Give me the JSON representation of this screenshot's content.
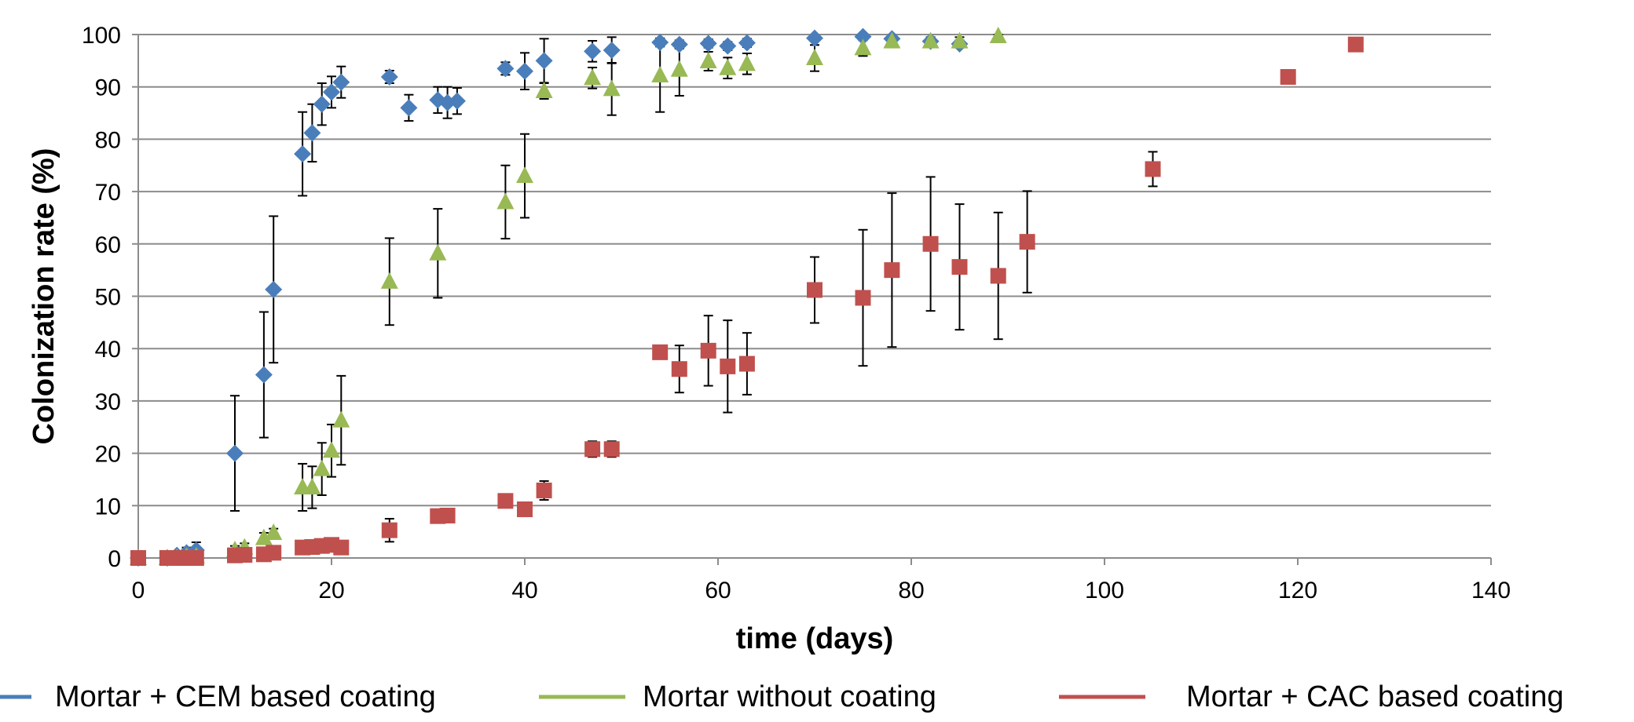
{
  "chart_data": {
    "type": "scatter",
    "xlabel": "time (days)",
    "ylabel": "Colonization rate (%)",
    "xlim": [
      0,
      140
    ],
    "ylim": [
      0,
      100
    ],
    "xticks": [
      0,
      20,
      40,
      60,
      80,
      100,
      120,
      140
    ],
    "yticks": [
      0,
      10,
      20,
      30,
      40,
      50,
      60,
      70,
      80,
      90,
      100
    ],
    "grid": "horizontal",
    "legend_position": "bottom",
    "series": [
      {
        "name": "Mortar + CEM based coating",
        "marker": "diamond",
        "color": "#4a7ebb",
        "points": [
          {
            "x": 0,
            "y": 0,
            "err": 0
          },
          {
            "x": 3,
            "y": 0,
            "err": 0
          },
          {
            "x": 4,
            "y": 0.5,
            "err": 0.5
          },
          {
            "x": 5,
            "y": 1.0,
            "err": 1.0
          },
          {
            "x": 6,
            "y": 1.5,
            "err": 1.5
          },
          {
            "x": 10,
            "y": 20,
            "err": 11
          },
          {
            "x": 13,
            "y": 35,
            "err": 12
          },
          {
            "x": 14,
            "y": 51.3,
            "err": 14
          },
          {
            "x": 17,
            "y": 77.2,
            "err": 8
          },
          {
            "x": 18,
            "y": 81.2,
            "err": 5.5
          },
          {
            "x": 19,
            "y": 86.7,
            "err": 4
          },
          {
            "x": 20,
            "y": 89,
            "err": 3
          },
          {
            "x": 21,
            "y": 90.9,
            "err": 3
          },
          {
            "x": 26,
            "y": 91.9,
            "err": 1.2
          },
          {
            "x": 28,
            "y": 86,
            "err": 2.5
          },
          {
            "x": 31,
            "y": 87.5,
            "err": 2.5
          },
          {
            "x": 32,
            "y": 87,
            "err": 3
          },
          {
            "x": 33,
            "y": 87.3,
            "err": 2.5
          },
          {
            "x": 38,
            "y": 93.5,
            "err": 1.2
          },
          {
            "x": 40,
            "y": 93,
            "err": 3.5
          },
          {
            "x": 42,
            "y": 95,
            "err": 4.2
          },
          {
            "x": 47,
            "y": 96.8,
            "err": 2
          },
          {
            "x": 49,
            "y": 97,
            "err": 2.5
          },
          {
            "x": 54,
            "y": 98.5,
            "err": 0.8
          },
          {
            "x": 56,
            "y": 98.1,
            "err": 0.8
          },
          {
            "x": 59,
            "y": 98.3,
            "err": 0.8
          },
          {
            "x": 61,
            "y": 97.8,
            "err": 0.8
          },
          {
            "x": 63,
            "y": 98.4,
            "err": 0.8
          },
          {
            "x": 70,
            "y": 99.3,
            "err": 0.5
          },
          {
            "x": 75,
            "y": 99.6,
            "err": 0.4
          },
          {
            "x": 78,
            "y": 99.2,
            "err": 0.5
          },
          {
            "x": 82,
            "y": 98.7,
            "err": 0.6
          },
          {
            "x": 85,
            "y": 98.2,
            "err": 0.7
          }
        ]
      },
      {
        "name": "Mortar without coating",
        "marker": "triangle",
        "color": "#98b954",
        "points": [
          {
            "x": 0,
            "y": 0,
            "err": 0
          },
          {
            "x": 3,
            "y": 0,
            "err": 0
          },
          {
            "x": 4,
            "y": 0,
            "err": 0
          },
          {
            "x": 5,
            "y": 0.2,
            "err": 0.2
          },
          {
            "x": 6,
            "y": 0.3,
            "err": 0.3
          },
          {
            "x": 10,
            "y": 1.5,
            "err": 0.8
          },
          {
            "x": 11,
            "y": 2,
            "err": 0.8
          },
          {
            "x": 13,
            "y": 3.8,
            "err": 1
          },
          {
            "x": 14,
            "y": 4.8,
            "err": 0.8
          },
          {
            "x": 17,
            "y": 13.5,
            "err": 4.5
          },
          {
            "x": 18,
            "y": 13.5,
            "err": 4
          },
          {
            "x": 19,
            "y": 17,
            "err": 5
          },
          {
            "x": 20,
            "y": 20.5,
            "err": 5
          },
          {
            "x": 21,
            "y": 26.3,
            "err": 8.5
          },
          {
            "x": 26,
            "y": 52.8,
            "err": 8.3
          },
          {
            "x": 31,
            "y": 58.2,
            "err": 8.5
          },
          {
            "x": 38,
            "y": 68,
            "err": 7
          },
          {
            "x": 40,
            "y": 73,
            "err": 8
          },
          {
            "x": 42,
            "y": 89.2,
            "err": 1.5
          },
          {
            "x": 47,
            "y": 91.7,
            "err": 2
          },
          {
            "x": 49,
            "y": 89.6,
            "err": 5
          },
          {
            "x": 54,
            "y": 92.2,
            "err": 7
          },
          {
            "x": 56,
            "y": 93.3,
            "err": 5
          },
          {
            "x": 59,
            "y": 94.9,
            "err": 1.8
          },
          {
            "x": 61,
            "y": 93.6,
            "err": 2
          },
          {
            "x": 63,
            "y": 94.4,
            "err": 2
          },
          {
            "x": 70,
            "y": 95.5,
            "err": 2.5
          },
          {
            "x": 75,
            "y": 97.4,
            "err": 1.5
          },
          {
            "x": 78,
            "y": 98.7,
            "err": 0.8
          },
          {
            "x": 82,
            "y": 98.7,
            "err": 0.8
          },
          {
            "x": 85,
            "y": 98.7,
            "err": 0.8
          },
          {
            "x": 89,
            "y": 99.7,
            "err": 0.3
          }
        ]
      },
      {
        "name": "Mortar + CAC based coating",
        "marker": "square",
        "color": "#c0504d",
        "points": [
          {
            "x": 0,
            "y": 0,
            "err": 0
          },
          {
            "x": 3,
            "y": 0,
            "err": 0
          },
          {
            "x": 4,
            "y": 0,
            "err": 0
          },
          {
            "x": 5,
            "y": 0,
            "err": 0
          },
          {
            "x": 6,
            "y": 0,
            "err": 0
          },
          {
            "x": 10,
            "y": 0.5,
            "err": 0
          },
          {
            "x": 11,
            "y": 0.6,
            "err": 0
          },
          {
            "x": 13,
            "y": 0.7,
            "err": 0
          },
          {
            "x": 14,
            "y": 1,
            "err": 0
          },
          {
            "x": 17,
            "y": 2,
            "err": 0
          },
          {
            "x": 18,
            "y": 2.1,
            "err": 0
          },
          {
            "x": 19,
            "y": 2.3,
            "err": 0
          },
          {
            "x": 20,
            "y": 2.5,
            "err": 0
          },
          {
            "x": 21,
            "y": 2,
            "err": 0
          },
          {
            "x": 26,
            "y": 5.3,
            "err": 2.2
          },
          {
            "x": 31,
            "y": 8,
            "err": 0.5
          },
          {
            "x": 32,
            "y": 8.1,
            "err": 0.5
          },
          {
            "x": 38,
            "y": 10.9,
            "err": 0.5
          },
          {
            "x": 40,
            "y": 9.3,
            "err": 0.5
          },
          {
            "x": 42,
            "y": 12.9,
            "err": 1.8
          },
          {
            "x": 47,
            "y": 20.8,
            "err": 1.5
          },
          {
            "x": 49,
            "y": 20.8,
            "err": 1.5
          },
          {
            "x": 54,
            "y": 39.3,
            "err": 0
          },
          {
            "x": 56,
            "y": 36.1,
            "err": 4.5
          },
          {
            "x": 59,
            "y": 39.6,
            "err": 6.7
          },
          {
            "x": 61,
            "y": 36.6,
            "err": 8.8
          },
          {
            "x": 63,
            "y": 37.1,
            "err": 5.9
          },
          {
            "x": 70,
            "y": 51.2,
            "err": 6.3
          },
          {
            "x": 75,
            "y": 49.7,
            "err": 13
          },
          {
            "x": 78,
            "y": 55,
            "err": 14.7
          },
          {
            "x": 82,
            "y": 60,
            "err": 12.8
          },
          {
            "x": 85,
            "y": 55.6,
            "err": 12
          },
          {
            "x": 89,
            "y": 53.9,
            "err": 12.1
          },
          {
            "x": 92,
            "y": 60.4,
            "err": 9.7
          },
          {
            "x": 105,
            "y": 74.3,
            "err": 3.3
          },
          {
            "x": 119,
            "y": 91.9,
            "err": 0
          },
          {
            "x": 126,
            "y": 98.1,
            "err": 0
          }
        ]
      }
    ]
  }
}
